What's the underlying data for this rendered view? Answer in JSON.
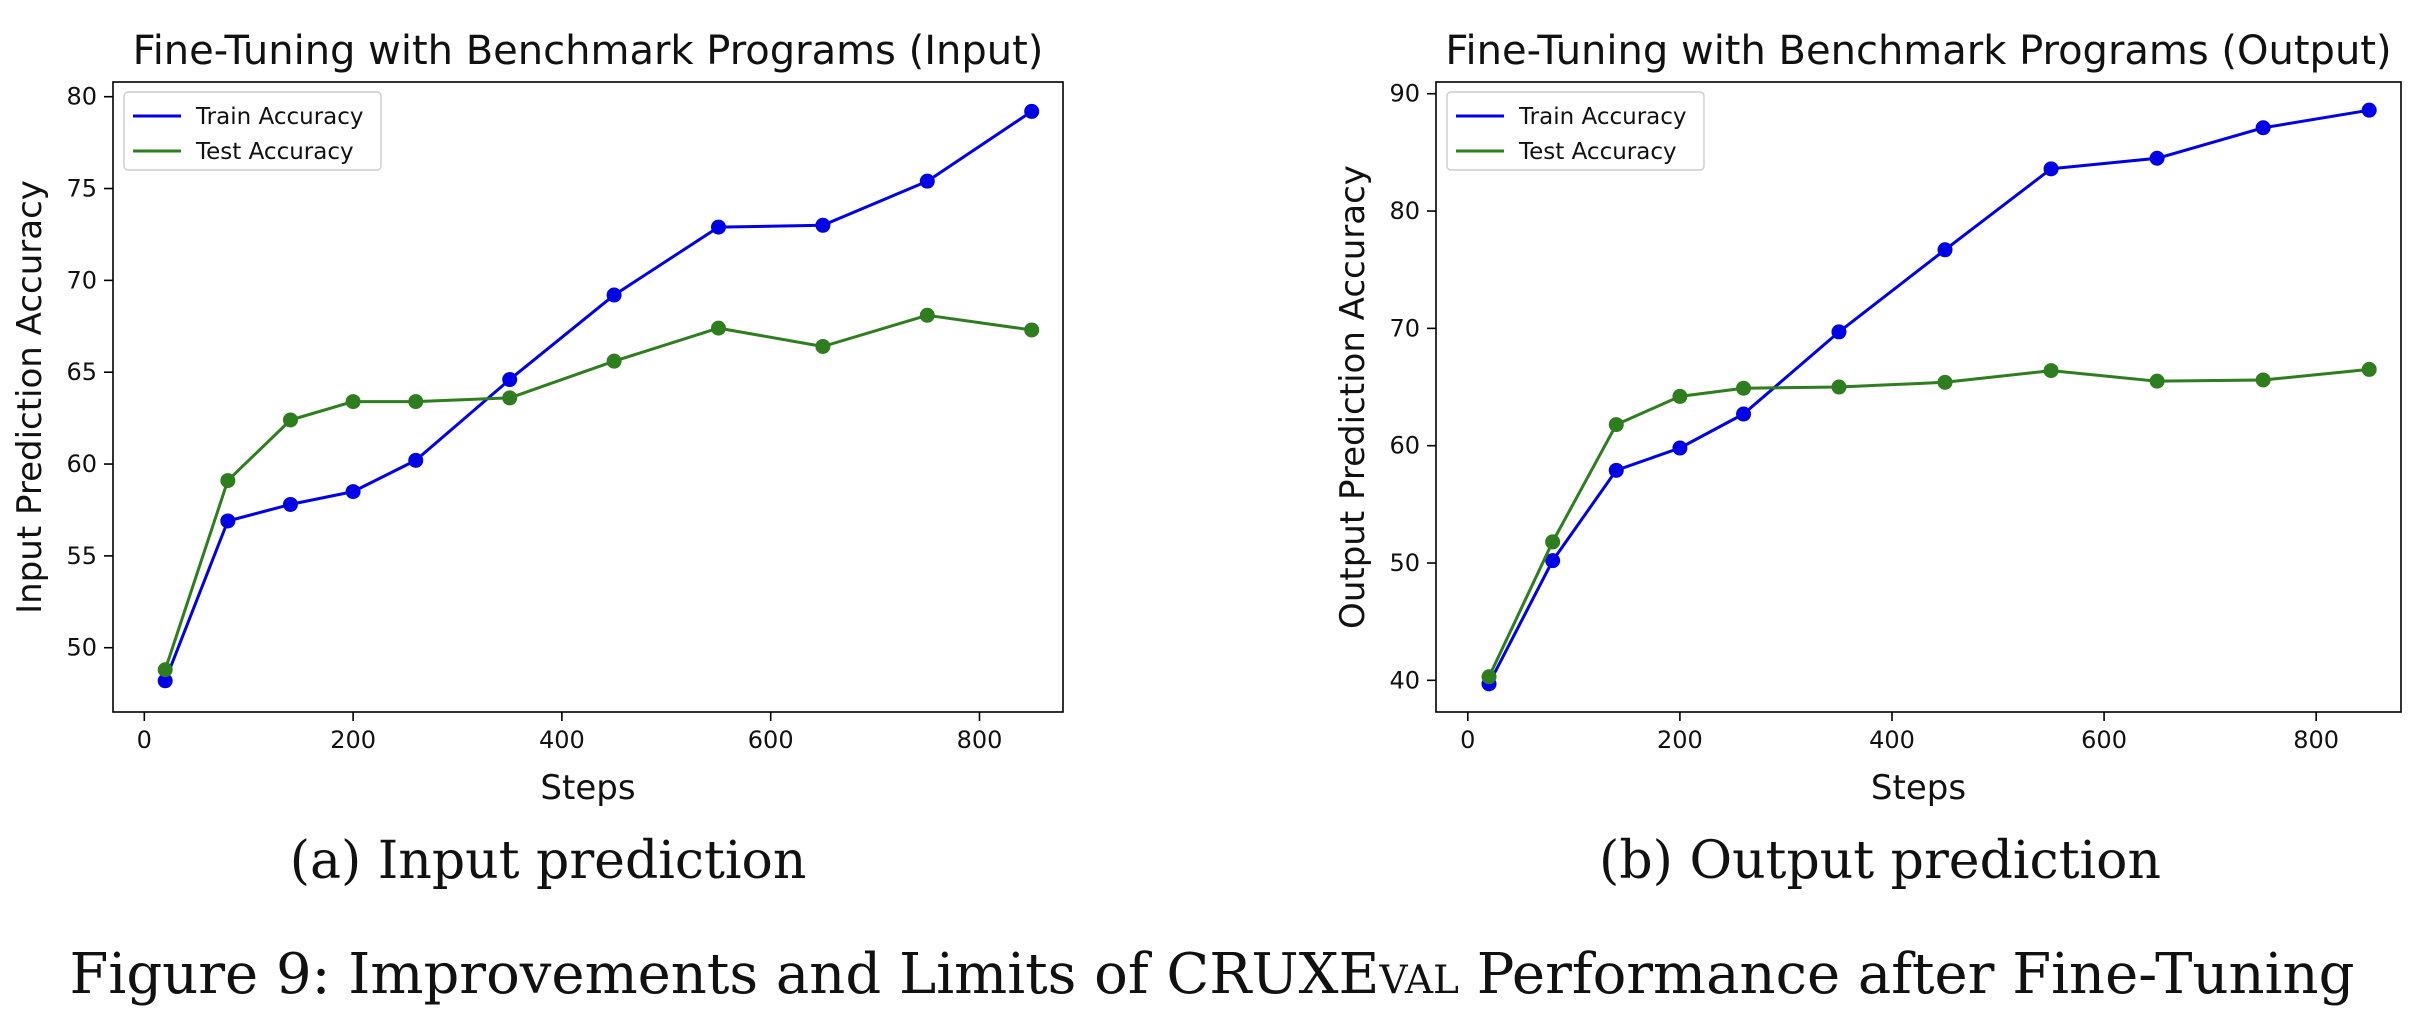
{
  "colors": {
    "train": "#0000e6",
    "test": "#2e7d1e",
    "axis": "#000000"
  },
  "subcaptions": [
    "(a) Input prediction",
    "(b) Output prediction"
  ],
  "figure_caption": {
    "prefix": "Figure 9: Improvements and Limits of ",
    "name_caps": "CRUXE",
    "name_smallcaps": "val",
    "suffix": " Performance after Fine-Tuning"
  },
  "chart_data": [
    {
      "type": "line",
      "title": "Fine-Tuning with Benchmark Programs (Input)",
      "xlabel": "Steps",
      "ylabel": "Input Prediction Accuracy",
      "xlim": [
        -30,
        880
      ],
      "ylim": [
        46.5,
        80.8
      ],
      "xticks": [
        0,
        200,
        400,
        600,
        800
      ],
      "yticks": [
        50,
        55,
        60,
        65,
        70,
        75,
        80
      ],
      "legend_position": "top-left",
      "series": [
        {
          "name": "Train Accuracy",
          "color": "#0000e6",
          "x": [
            20,
            80,
            140,
            200,
            260,
            350,
            450,
            550,
            650,
            750,
            850
          ],
          "y": [
            48.2,
            56.9,
            57.8,
            58.5,
            60.2,
            64.6,
            69.2,
            72.9,
            73.0,
            75.4,
            79.2
          ]
        },
        {
          "name": "Test Accuracy",
          "color": "#2e7d1e",
          "x": [
            20,
            80,
            140,
            200,
            260,
            350,
            450,
            550,
            650,
            750,
            850
          ],
          "y": [
            48.8,
            59.1,
            62.4,
            63.4,
            63.4,
            63.6,
            65.6,
            67.4,
            66.4,
            68.1,
            67.3
          ]
        }
      ]
    },
    {
      "type": "line",
      "title": "Fine-Tuning with Benchmark Programs (Output)",
      "xlabel": "Steps",
      "ylabel": "Output Prediction Accuracy",
      "xlim": [
        -30,
        880
      ],
      "ylim": [
        37.3,
        91.0
      ],
      "xticks": [
        0,
        200,
        400,
        600,
        800
      ],
      "yticks": [
        40,
        50,
        60,
        70,
        80,
        90
      ],
      "legend_position": "top-left",
      "series": [
        {
          "name": "Train Accuracy",
          "color": "#0000e6",
          "x": [
            20,
            80,
            140,
            200,
            260,
            350,
            450,
            550,
            650,
            750,
            850
          ],
          "y": [
            39.7,
            50.2,
            57.9,
            59.8,
            62.7,
            69.7,
            76.7,
            83.6,
            84.5,
            87.1,
            88.6
          ]
        },
        {
          "name": "Test Accuracy",
          "color": "#2e7d1e",
          "x": [
            20,
            80,
            140,
            200,
            260,
            350,
            450,
            550,
            650,
            750,
            850
          ],
          "y": [
            40.3,
            51.8,
            61.8,
            64.2,
            64.9,
            65.0,
            65.4,
            66.4,
            65.5,
            65.6,
            66.5
          ]
        }
      ]
    }
  ]
}
